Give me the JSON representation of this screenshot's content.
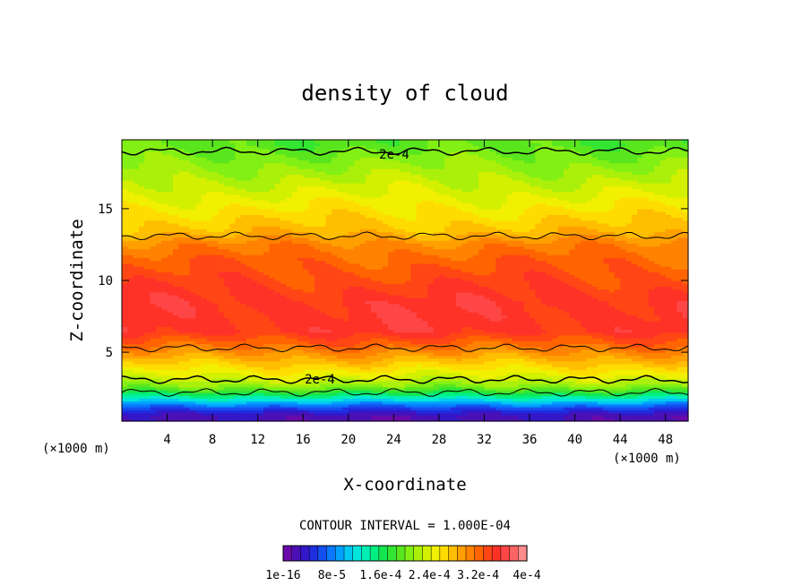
{
  "chart_data": {
    "type": "heatmap",
    "title": "density of cloud",
    "xlabel": "X-coordinate",
    "ylabel": "Z-coordinate",
    "x_unit_left": "(×1000 m)",
    "x_unit_right": "(×1000 m)",
    "xlim": [
      0,
      50
    ],
    "ylim": [
      0.2,
      19.8
    ],
    "xticks": [
      4,
      8,
      12,
      16,
      20,
      24,
      28,
      32,
      36,
      40,
      44,
      48
    ],
    "yticks": [
      5,
      10,
      15
    ],
    "contour_label": "2e-4",
    "contour_interval_text": "CONTOUR INTERVAL = 1.000E-04",
    "colorbar": {
      "min": 1e-16,
      "max": 0.0004,
      "tick_labels": [
        "1e-16",
        "8e-5",
        "1.6e-4",
        "2.4e-4",
        "3.2e-4",
        "4e-4"
      ],
      "colors": [
        "#6a0aa8",
        "#4b10b4",
        "#3218c8",
        "#1e2ee0",
        "#1450f0",
        "#0a78ff",
        "#00a0ff",
        "#00c8f0",
        "#00e6dc",
        "#00f0b4",
        "#00f082",
        "#14e650",
        "#32e632",
        "#5ae61e",
        "#82f014",
        "#aaf00a",
        "#d2f000",
        "#f0f000",
        "#ffdc00",
        "#ffbe00",
        "#ffa000",
        "#ff8200",
        "#ff6400",
        "#ff4614",
        "#ff3228",
        "#ff4646",
        "#ff6464",
        "#ff8c8c"
      ]
    },
    "profile_z": [
      0.6,
      1.2,
      2.0,
      2.6,
      3.2,
      4.0,
      4.8,
      5.6,
      6.5,
      7.5,
      8.5,
      10.0,
      11.5,
      12.5,
      13.5,
      14.5,
      15.5,
      16.5,
      17.5,
      18.5,
      19.5
    ],
    "profile_level": [
      1,
      4,
      10,
      14,
      16,
      18,
      20,
      22,
      24,
      24,
      24,
      23,
      22,
      21,
      19,
      18,
      17,
      16,
      15,
      14,
      13
    ],
    "contour_lines_z": [
      2.2,
      3.1,
      5.3,
      13.1,
      19.0
    ]
  }
}
